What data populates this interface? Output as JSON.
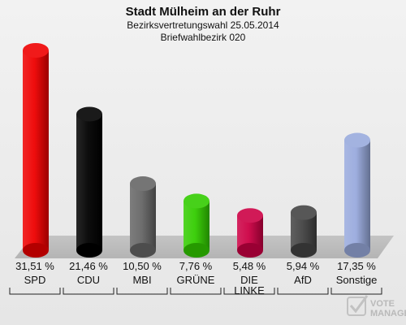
{
  "chart_data": {
    "type": "bar",
    "title": "Stadt Mülheim an der Ruhr",
    "subtitle_lines": [
      "Bezirksvertretungswahl 25.05.2014",
      "Briefwahlbezirk 020"
    ],
    "categories": [
      "SPD",
      "CDU",
      "MBI",
      "GRÜNE",
      "DIE LINKE",
      "AfD",
      "Sonstige"
    ],
    "category_lines": [
      [
        "SPD"
      ],
      [
        "CDU"
      ],
      [
        "MBI"
      ],
      [
        "GRÜNE"
      ],
      [
        "DIE",
        "LINKE"
      ],
      [
        "AfD"
      ],
      [
        "Sonstige"
      ]
    ],
    "values": [
      31.51,
      21.46,
      10.5,
      7.76,
      5.48,
      5.94,
      17.35
    ],
    "value_labels": [
      "31,51 %",
      "21,46 %",
      "10,50 %",
      "7,76 %",
      "5,48 %",
      "5,94 %",
      "17,35 %"
    ],
    "colors": [
      "#ee0000",
      "#000000",
      "#666666",
      "#33cc00",
      "#cc0044",
      "#444444",
      "#99aadd"
    ],
    "xlabel": "",
    "ylabel": "",
    "grid": false,
    "legend": "none"
  },
  "watermark": {
    "line1": "VOTE",
    "line2": "MANAGER"
  }
}
